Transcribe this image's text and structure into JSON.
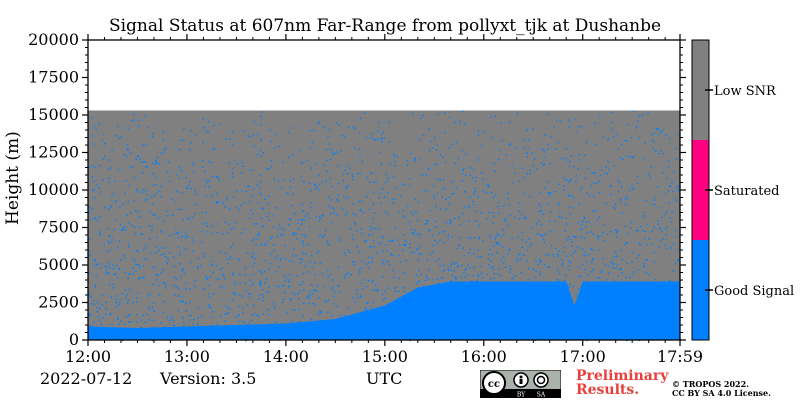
{
  "chart_data": {
    "type": "heatmap",
    "title": "Signal Status at 607nm Far-Range from pollyxt_tjk at Dushanbe",
    "xlabel": "UTC",
    "ylabel": "Height (m)",
    "xlim": [
      "12:00",
      "17:59"
    ],
    "ylim": [
      0,
      20000
    ],
    "x_ticks": [
      "12:00",
      "13:00",
      "14:00",
      "15:00",
      "16:00",
      "17:00",
      "17:59"
    ],
    "y_ticks": [
      "0",
      "2500",
      "5000",
      "7500",
      "10000",
      "12500",
      "15000",
      "17500",
      "20000"
    ],
    "data_top_m": 15300,
    "classes": [
      {
        "name": "Good Signal",
        "color": "#0080ff"
      },
      {
        "name": "Saturated",
        "color": "#ff0080"
      },
      {
        "name": "Low SNR",
        "color": "#808080"
      }
    ],
    "good_signal_top": {
      "times_utc": [
        "12:00",
        "12:30",
        "13:00",
        "13:30",
        "14:00",
        "14:30",
        "15:00",
        "15:10",
        "15:20",
        "15:40",
        "16:00",
        "16:30",
        "16:50",
        "16:55",
        "17:00",
        "17:20",
        "17:40",
        "17:59"
      ],
      "height_m": [
        900,
        800,
        900,
        1000,
        1100,
        1400,
        2300,
        2900,
        3500,
        3900,
        3900,
        3900,
        3900,
        2300,
        3900,
        3900,
        3900,
        3900
      ]
    },
    "footer": {
      "date": "2022-07-12",
      "version": "Version: 3.5",
      "preliminary": [
        "Preliminary",
        "Results."
      ],
      "copyright": [
        "© TROPOS 2022.",
        "CC BY SA 4.0 License."
      ],
      "license_badge": "CC BY SA"
    }
  }
}
